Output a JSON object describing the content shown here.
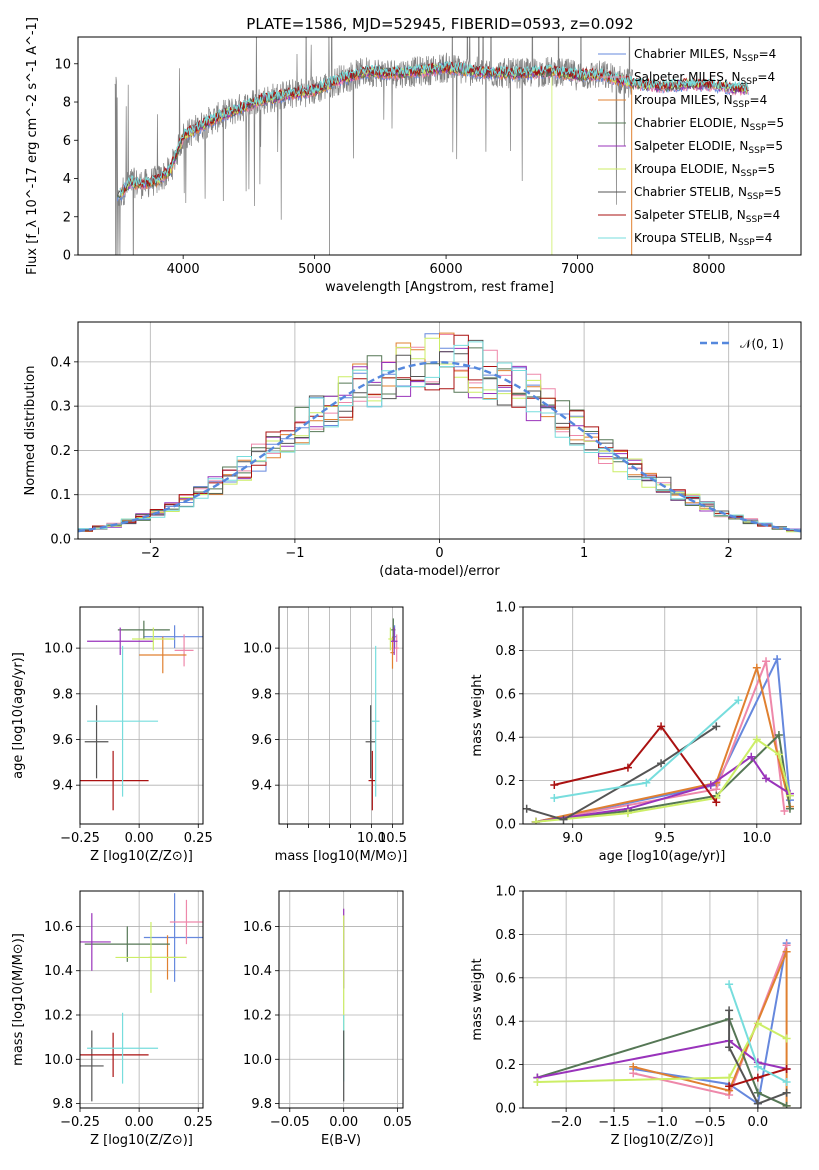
{
  "figure": {
    "title": "PLATE=1586, MJD=52945, FIBERID=0593, z=0.092"
  },
  "models": [
    {
      "label": "Chabrier MILES, N",
      "sub": "SSP",
      "tail": "=4",
      "color": "#6688dd"
    },
    {
      "label": "Salpeter MILES, N",
      "sub": "SSP",
      "tail": "=4",
      "color": "#ee88aa"
    },
    {
      "label": "Kroupa MILES, N",
      "sub": "SSP",
      "tail": "=4",
      "color": "#e08030"
    },
    {
      "label": "Chabrier ELODIE, N",
      "sub": "SSP",
      "tail": "=5",
      "color": "#557755"
    },
    {
      "label": "Salpeter ELODIE, N",
      "sub": "SSP",
      "tail": "=5",
      "color": "#9933bb"
    },
    {
      "label": "Kroupa ELODIE, N",
      "sub": "SSP",
      "tail": "=5",
      "color": "#ccee66"
    },
    {
      "label": "Chabrier STELIB, N",
      "sub": "SSP",
      "tail": "=5",
      "color": "#555555"
    },
    {
      "label": "Salpeter STELIB, N",
      "sub": "SSP",
      "tail": "=4",
      "color": "#aa1111"
    },
    {
      "label": "Kroupa STELIB, N",
      "sub": "SSP",
      "tail": "=4",
      "color": "#77dddd"
    }
  ],
  "chart_data": [
    {
      "id": "spectrum",
      "type": "line",
      "xlabel": "wavelength [Angstrom, rest frame]",
      "ylabel": "Flux [f_λ 10^-17 erg cm^-2 s^-1 A^-1]",
      "xlim": [
        3200,
        8700
      ],
      "ylim": [
        0,
        11.4
      ],
      "xticks": [
        4000,
        5000,
        6000,
        7000,
        8000
      ],
      "yticks": [
        0,
        2,
        4,
        6,
        8,
        10
      ],
      "continuum": [
        [
          3500,
          3.0
        ],
        [
          3600,
          3.8
        ],
        [
          3700,
          3.7
        ],
        [
          3800,
          3.9
        ],
        [
          3900,
          4.4
        ],
        [
          4000,
          6.2
        ],
        [
          4200,
          7.0
        ],
        [
          4400,
          7.6
        ],
        [
          4600,
          8.1
        ],
        [
          4800,
          8.4
        ],
        [
          5000,
          8.6
        ],
        [
          5200,
          9.2
        ],
        [
          5400,
          9.6
        ],
        [
          5600,
          9.5
        ],
        [
          5800,
          9.6
        ],
        [
          6000,
          9.8
        ],
        [
          6200,
          9.6
        ],
        [
          6400,
          9.5
        ],
        [
          6600,
          9.5
        ],
        [
          6800,
          9.6
        ],
        [
          7000,
          9.4
        ],
        [
          7200,
          9.4
        ],
        [
          7400,
          9.0
        ],
        [
          7600,
          8.8
        ],
        [
          7800,
          8.9
        ],
        [
          8000,
          8.9
        ],
        [
          8200,
          8.7
        ],
        [
          8300,
          8.7
        ]
      ],
      "grid": false,
      "legend": "right"
    },
    {
      "id": "residuals",
      "type": "line",
      "xlabel": "(data-model)/error",
      "ylabel": "Normed distribution",
      "xlim": [
        -2.5,
        2.5
      ],
      "ylim": [
        0,
        0.49
      ],
      "xticks": [
        -2,
        -1,
        0,
        1,
        2
      ],
      "yticks": [
        0.0,
        0.1,
        0.2,
        0.3,
        0.4
      ],
      "reference": "N(0,1)",
      "legend_label": "𝒩(0, 1)",
      "bin_width": 0.1,
      "grid": true,
      "legend": "top-right"
    },
    {
      "id": "age-vs-Z",
      "type": "scatter",
      "xlabel": "Z [log10(Z/Z⊙)]",
      "ylabel": "age  [log10(age/yr)]",
      "xlim": [
        -0.25,
        0.27
      ],
      "ylim": [
        9.23,
        10.18
      ],
      "xticks": [
        -0.25,
        0.0,
        0.25
      ],
      "yticks": [
        9.4,
        9.6,
        9.8,
        10.0
      ],
      "points": [
        {
          "model": 0,
          "x": 0.15,
          "y": 10.05,
          "xerr": 0.13,
          "yerr": 0.05
        },
        {
          "model": 1,
          "x": 0.19,
          "y": 9.99,
          "xerr": 0.04,
          "yerr": 0.07
        },
        {
          "model": 2,
          "x": 0.1,
          "y": 9.97,
          "xerr": 0.1,
          "yerr": 0.08
        },
        {
          "model": 3,
          "x": 0.02,
          "y": 10.08,
          "xerr": 0.11,
          "yerr": 0.04
        },
        {
          "model": 4,
          "x": -0.08,
          "y": 10.03,
          "xerr": 0.14,
          "yerr": 0.06
        },
        {
          "model": 5,
          "x": 0.06,
          "y": 10.04,
          "xerr": 0.09,
          "yerr": 0.05
        },
        {
          "model": 6,
          "x": -0.18,
          "y": 9.59,
          "xerr": 0.05,
          "yerr": 0.16
        },
        {
          "model": 7,
          "x": -0.11,
          "y": 9.42,
          "xerr": 0.15,
          "yerr": 0.13
        },
        {
          "model": 8,
          "x": -0.07,
          "y": 9.68,
          "xerr": 0.15,
          "yerr": 0.33
        }
      ]
    },
    {
      "id": "age-vs-mass",
      "type": "scatter",
      "xlabel": "mass [log10(M/M⊙)]",
      "ylabel": "",
      "xlim": [
        7.8,
        10.75
      ],
      "ylim": [
        9.23,
        10.18
      ],
      "xticks": [
        8.0,
        8.5,
        9.0,
        9.5,
        10.0,
        10.5
      ],
      "yticks": [
        9.4,
        9.6,
        9.8,
        10.0
      ],
      "xtick_labels_shown": [
        10.0,
        10.5
      ],
      "points": [
        {
          "model": 0,
          "x": 10.55,
          "y": 10.05,
          "xerr": 0.05,
          "yerr": 0.05
        },
        {
          "model": 1,
          "x": 10.6,
          "y": 10.0,
          "xerr": 0.05,
          "yerr": 0.06
        },
        {
          "model": 2,
          "x": 10.5,
          "y": 9.98,
          "xerr": 0.05,
          "yerr": 0.07
        },
        {
          "model": 3,
          "x": 10.52,
          "y": 10.08,
          "xerr": 0.05,
          "yerr": 0.05
        },
        {
          "model": 4,
          "x": 10.54,
          "y": 10.03,
          "xerr": 0.08,
          "yerr": 0.06
        },
        {
          "model": 5,
          "x": 10.45,
          "y": 10.04,
          "xerr": 0.05,
          "yerr": 0.05
        },
        {
          "model": 6,
          "x": 9.98,
          "y": 9.59,
          "xerr": 0.12,
          "yerr": 0.16
        },
        {
          "model": 7,
          "x": 10.02,
          "y": 9.42,
          "xerr": 0.09,
          "yerr": 0.13
        },
        {
          "model": 8,
          "x": 10.1,
          "y": 9.68,
          "xerr": 0.09,
          "yerr": 0.33
        }
      ]
    },
    {
      "id": "weight-vs-age",
      "type": "line",
      "xlabel": "age  [log10(age/yr)]",
      "ylabel": "mass weight",
      "xlim": [
        8.73,
        10.24
      ],
      "ylim": [
        0.0,
        1.0
      ],
      "xticks": [
        9.0,
        9.5,
        10.0
      ],
      "yticks": [
        0.0,
        0.2,
        0.4,
        0.6,
        0.8,
        1.0
      ],
      "series": [
        {
          "model": 0,
          "x": [
            8.8,
            9.78,
            10.11,
            10.18
          ],
          "y": [
            0.01,
            0.18,
            0.76,
            0.11
          ]
        },
        {
          "model": 1,
          "x": [
            8.8,
            9.78,
            10.05,
            10.15
          ],
          "y": [
            0.01,
            0.16,
            0.75,
            0.06
          ]
        },
        {
          "model": 2,
          "x": [
            8.8,
            9.78,
            10.0,
            10.18
          ],
          "y": [
            0.01,
            0.19,
            0.72,
            0.08
          ]
        },
        {
          "model": 3,
          "x": [
            8.8,
            9.3,
            9.78,
            10.12,
            10.18
          ],
          "y": [
            0.01,
            0.06,
            0.13,
            0.41,
            0.07
          ]
        },
        {
          "model": 4,
          "x": [
            8.8,
            9.3,
            9.75,
            9.97,
            10.05,
            10.18
          ],
          "y": [
            0.01,
            0.07,
            0.18,
            0.31,
            0.21,
            0.14
          ]
        },
        {
          "model": 5,
          "x": [
            8.8,
            9.3,
            9.78,
            10.0,
            10.12,
            10.18
          ],
          "y": [
            0.01,
            0.05,
            0.12,
            0.39,
            0.32,
            0.13
          ]
        },
        {
          "model": 6,
          "x": [
            8.75,
            8.95,
            9.48,
            9.78
          ],
          "y": [
            0.07,
            0.02,
            0.28,
            0.45
          ]
        },
        {
          "model": 7,
          "x": [
            8.9,
            9.3,
            9.48,
            9.78
          ],
          "y": [
            0.18,
            0.26,
            0.45,
            0.1
          ]
        },
        {
          "model": 8,
          "x": [
            8.9,
            9.4,
            9.9
          ],
          "y": [
            0.12,
            0.19,
            0.57
          ]
        }
      ]
    },
    {
      "id": "mass-vs-Z",
      "type": "scatter",
      "xlabel": "Z [log10(Z/Z⊙)]",
      "ylabel": "mass [log10(M/M⊙)]",
      "xlim": [
        -0.25,
        0.27
      ],
      "ylim": [
        9.78,
        10.76
      ],
      "xticks": [
        -0.25,
        0.0,
        0.25
      ],
      "yticks": [
        9.8,
        10.0,
        10.2,
        10.4,
        10.6
      ],
      "points": [
        {
          "model": 0,
          "x": 0.15,
          "y": 10.55,
          "xerr": 0.13,
          "yerr": 0.2
        },
        {
          "model": 1,
          "x": 0.2,
          "y": 10.62,
          "xerr": 0.07,
          "yerr": 0.1
        },
        {
          "model": 2,
          "x": 0.12,
          "y": 10.46,
          "xerr": 0.08,
          "yerr": 0.1
        },
        {
          "model": 3,
          "x": -0.05,
          "y": 10.52,
          "xerr": 0.18,
          "yerr": 0.08
        },
        {
          "model": 4,
          "x": -0.2,
          "y": 10.53,
          "xerr": 0.08,
          "yerr": 0.13
        },
        {
          "model": 5,
          "x": 0.05,
          "y": 10.46,
          "xerr": 0.15,
          "yerr": 0.16
        },
        {
          "model": 6,
          "x": -0.2,
          "y": 9.97,
          "xerr": 0.05,
          "yerr": 0.16
        },
        {
          "model": 7,
          "x": -0.11,
          "y": 10.02,
          "xerr": 0.15,
          "yerr": 0.1
        },
        {
          "model": 8,
          "x": -0.07,
          "y": 10.05,
          "xerr": 0.15,
          "yerr": 0.16
        }
      ]
    },
    {
      "id": "mass-vs-EBV",
      "type": "scatter",
      "xlabel": "E(B-V)",
      "ylabel": "",
      "xlim": [
        -0.06,
        0.055
      ],
      "ylim": [
        9.78,
        10.76
      ],
      "xticks": [
        -0.05,
        0.0,
        0.05
      ],
      "yticks": [
        9.8,
        10.0,
        10.2,
        10.4,
        10.6
      ],
      "points": [
        {
          "model": 4,
          "x": 0.0,
          "y": 10.5,
          "xerr": 0,
          "yerr": 0.18
        },
        {
          "model": 5,
          "x": 0.0,
          "y": 10.3,
          "xerr": 0,
          "yerr": 0.35
        },
        {
          "model": 8,
          "x": 0.0,
          "y": 10.05,
          "xerr": 0,
          "yerr": 0.15
        },
        {
          "model": 6,
          "x": 0.0,
          "y": 9.97,
          "xerr": 0,
          "yerr": 0.16
        }
      ]
    },
    {
      "id": "weight-vs-Z",
      "type": "line",
      "xlabel": "Z [log10(Z/Z⊙)]",
      "ylabel": "mass weight",
      "xlim": [
        -2.45,
        0.45
      ],
      "ylim": [
        0.0,
        1.0
      ],
      "xticks": [
        -2.0,
        -1.5,
        -1.0,
        -0.5,
        0.0
      ],
      "yticks": [
        0.0,
        0.2,
        0.4,
        0.6,
        0.8,
        1.0
      ],
      "series": [
        {
          "model": 0,
          "x": [
            -1.3,
            -0.3,
            0.0,
            0.3
          ],
          "y": [
            0.18,
            0.11,
            0.02,
            0.76
          ]
        },
        {
          "model": 1,
          "x": [
            -1.3,
            -0.3,
            0.3
          ],
          "y": [
            0.16,
            0.06,
            0.75
          ]
        },
        {
          "model": 2,
          "x": [
            -1.3,
            -0.3,
            0.3,
            0.3
          ],
          "y": [
            0.19,
            0.08,
            0.72,
            0.01
          ]
        },
        {
          "model": 3,
          "x": [
            -2.3,
            -0.3,
            0.0,
            0.3
          ],
          "y": [
            0.14,
            0.41,
            0.07,
            0.01
          ]
        },
        {
          "model": 4,
          "x": [
            -2.3,
            -0.3,
            0.0,
            0.3
          ],
          "y": [
            0.14,
            0.31,
            0.21,
            0.18
          ]
        },
        {
          "model": 5,
          "x": [
            -2.3,
            -0.3,
            0.0,
            0.3
          ],
          "y": [
            0.12,
            0.14,
            0.39,
            0.32
          ]
        },
        {
          "model": 6,
          "x": [
            -0.3,
            -0.3,
            0.0,
            0.3
          ],
          "y": [
            0.45,
            0.28,
            0.02,
            0.07
          ]
        },
        {
          "model": 7,
          "x": [
            -0.3,
            0.0,
            0.3
          ],
          "y": [
            0.1,
            0.14,
            0.18
          ]
        },
        {
          "model": 8,
          "x": [
            -0.3,
            0.0,
            0.3
          ],
          "y": [
            0.57,
            0.19,
            0.12
          ]
        }
      ]
    }
  ]
}
